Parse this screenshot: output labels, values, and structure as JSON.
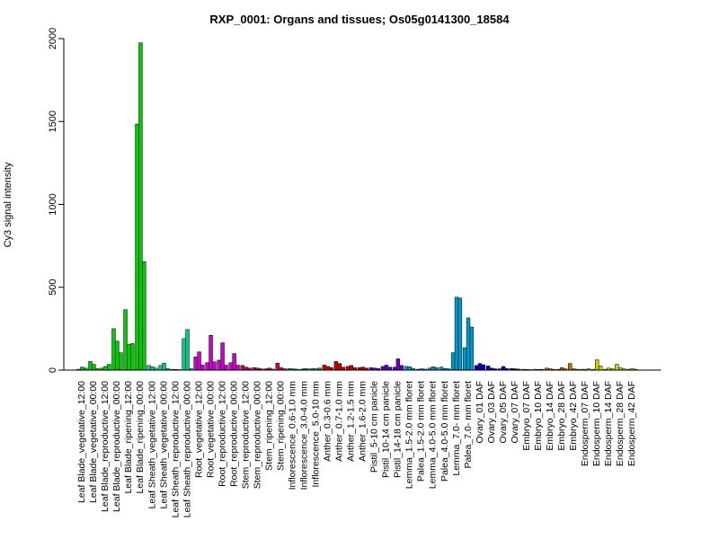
{
  "chart_data": {
    "type": "bar",
    "title": "RXP_0001: Organs and tissues; Os05g0141300_18584",
    "xlabel": "",
    "ylabel": "Cy3 signal intensity",
    "ylim": [
      0,
      2000
    ],
    "yticks": [
      0,
      500,
      1000,
      1500,
      2000
    ],
    "grid": false,
    "legend": "none",
    "groups": [
      {
        "label": "Leaf Blade_vegetative_12:00",
        "color": "#00cc00",
        "values": [
          5,
          18,
          12
        ]
      },
      {
        "label": "Leaf Blade_vegetative_00:00",
        "color": "#00cc00",
        "values": [
          52,
          35,
          10
        ]
      },
      {
        "label": "Leaf Blade_reproductive_12:00",
        "color": "#00cc00",
        "values": [
          12,
          22,
          35
        ]
      },
      {
        "label": "Leaf Blade_reproductive_00:00",
        "color": "#00cc00",
        "values": [
          250,
          175,
          105
        ]
      },
      {
        "label": "Leaf Blade_ripening_12:00",
        "color": "#00cc00",
        "values": [
          365,
          155,
          160
        ]
      },
      {
        "label": "Leaf Blade_ripening_00:00",
        "color": "#00cc00",
        "values": [
          1485,
          1975,
          655
        ]
      },
      {
        "label": "Leaf Sheath_vegetative_12:00",
        "color": "#00cc88",
        "values": [
          28,
          20,
          12
        ]
      },
      {
        "label": "Leaf Sheath_vegetative_00:00",
        "color": "#00cc88",
        "values": [
          28,
          42,
          10
        ]
      },
      {
        "label": "Leaf Sheath_reproductive_12:00",
        "color": "#00cc88",
        "values": [
          5,
          4,
          3
        ]
      },
      {
        "label": "Leaf Sheath_reproductive_00:00",
        "color": "#00cc88",
        "values": [
          190,
          245,
          10
        ]
      },
      {
        "label": "Root_vegetative_12:00",
        "color": "#cc00cc",
        "values": [
          80,
          110,
          30
        ]
      },
      {
        "label": "Root_vegetative_00:00",
        "color": "#cc00cc",
        "values": [
          45,
          210,
          50
        ]
      },
      {
        "label": "Root_reproductive_12:00",
        "color": "#cc00cc",
        "values": [
          60,
          165,
          30
        ]
      },
      {
        "label": "Root_reproductive_00:00",
        "color": "#cc00cc",
        "values": [
          45,
          100,
          30
        ]
      },
      {
        "label": "Stem_reproductive_12:00",
        "color": "#cc0066",
        "values": [
          28,
          18,
          12
        ]
      },
      {
        "label": "Stem_reproductive_00:00",
        "color": "#cc0066",
        "values": [
          15,
          12,
          8
        ]
      },
      {
        "label": "Stem_ripening_12:00",
        "color": "#cc0066",
        "values": [
          8,
          12,
          6
        ]
      },
      {
        "label": "Stem_ripening_00:00",
        "color": "#cc0066",
        "values": [
          42,
          15,
          8
        ]
      },
      {
        "label": "Inflorescence_0.6-1.0 mm",
        "color": "#00aa44",
        "values": [
          10,
          8,
          6
        ]
      },
      {
        "label": "Inflorescence_3.0-4.0 mm",
        "color": "#00aa44",
        "values": [
          5,
          10,
          8
        ]
      },
      {
        "label": "Inflorescence_5.0-10 mm",
        "color": "#00aa44",
        "values": [
          10,
          8,
          12
        ]
      },
      {
        "label": "Anther_0.3-0.6 mm",
        "color": "#cc0000",
        "values": [
          30,
          22,
          15
        ]
      },
      {
        "label": "Anther_0.7-1.0 mm",
        "color": "#cc0000",
        "values": [
          52,
          40,
          18
        ]
      },
      {
        "label": "Anther_1.2-1.5 mm",
        "color": "#cc0000",
        "values": [
          22,
          28,
          15
        ]
      },
      {
        "label": "Anther_1.6-2.0 mm",
        "color": "#cc0000",
        "values": [
          15,
          18,
          12
        ]
      },
      {
        "label": "Pistil_5-10 cm panicle",
        "color": "#6600cc",
        "values": [
          15,
          12,
          10
        ]
      },
      {
        "label": "Pistil_10-14 cm panicle",
        "color": "#6600cc",
        "values": [
          22,
          30,
          18
        ]
      },
      {
        "label": "Pistil_14-18 cm panicle",
        "color": "#6600cc",
        "values": [
          18,
          68,
          28
        ]
      },
      {
        "label": "Lemma_1.5-2.0 mm floret",
        "color": "#0099cc",
        "values": [
          22,
          20,
          10
        ]
      },
      {
        "label": "Palea_1.5-2.0 mm floret",
        "color": "#0099cc",
        "values": [
          5,
          8,
          6
        ]
      },
      {
        "label": "Lemma_4.0-5.0 mm floret",
        "color": "#0099cc",
        "values": [
          12,
          20,
          15
        ]
      },
      {
        "label": "Palea_4.0-5.0 mm floret",
        "color": "#0099cc",
        "values": [
          18,
          10,
          8
        ]
      },
      {
        "label": "Lemma_7.0- mm floret",
        "color": "#0099cc",
        "values": [
          105,
          440,
          435
        ]
      },
      {
        "label": "Palea_7.0- mm floret",
        "color": "#0099cc",
        "values": [
          135,
          315,
          260
        ]
      },
      {
        "label": "Ovary_01 DAF",
        "color": "#0000cc",
        "values": [
          28,
          40,
          32
        ]
      },
      {
        "label": "Ovary_03 DAF",
        "color": "#0000cc",
        "values": [
          25,
          12,
          8
        ]
      },
      {
        "label": "Ovary_05 DAF",
        "color": "#0000cc",
        "values": [
          8,
          22,
          10
        ]
      },
      {
        "label": "Ovary_07 DAF",
        "color": "#0000cc",
        "values": [
          10,
          8,
          6
        ]
      },
      {
        "label": "Embryo_07 DAF",
        "color": "#cc6600",
        "values": [
          5,
          4,
          3
        ]
      },
      {
        "label": "Embryo_10 DAF",
        "color": "#cc6600",
        "values": [
          5,
          4,
          5
        ]
      },
      {
        "label": "Embryo_14 DAF",
        "color": "#cc6600",
        "values": [
          12,
          8,
          5
        ]
      },
      {
        "label": "Embryo_28 DAF",
        "color": "#cc6600",
        "values": [
          5,
          15,
          8
        ]
      },
      {
        "label": "Embryo_42 DAF",
        "color": "#cc6600",
        "values": [
          40,
          8,
          5
        ]
      },
      {
        "label": "Endosperm_07 DAF",
        "color": "#cccc00",
        "values": [
          5,
          5,
          8
        ]
      },
      {
        "label": "Endosperm_10 DAF",
        "color": "#cccc00",
        "values": [
          5,
          62,
          25
        ]
      },
      {
        "label": "Endosperm_14 DAF",
        "color": "#cccc00",
        "values": [
          5,
          12,
          8
        ]
      },
      {
        "label": "Endosperm_28 DAF",
        "color": "#cccc00",
        "values": [
          35,
          15,
          8
        ]
      },
      {
        "label": "Endosperm_42 DAF",
        "color": "#cccc00",
        "values": [
          5,
          10,
          5
        ]
      }
    ]
  }
}
